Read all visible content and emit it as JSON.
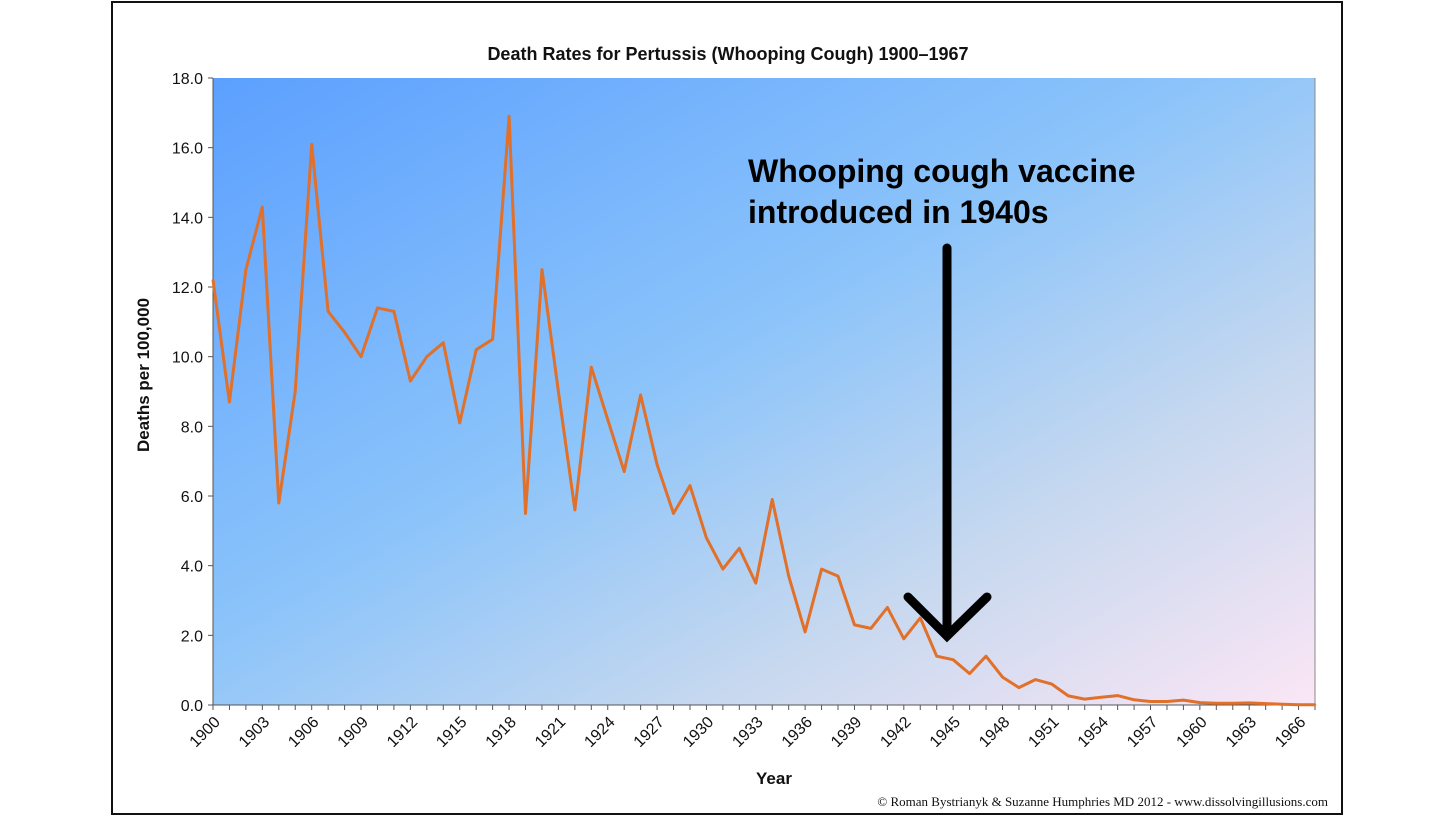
{
  "chart_data": {
    "type": "line",
    "title": "Death Rates for Pertussis (Whooping Cough) 1900–1967",
    "xlabel": "Year",
    "ylabel": "Deaths per 100,000",
    "xlim": [
      1900,
      1967
    ],
    "ylim": [
      0,
      18
    ],
    "y_ticks": [
      "0.0",
      "2.0",
      "4.0",
      "6.0",
      "8.0",
      "10.0",
      "12.0",
      "14.0",
      "16.0",
      "18.0"
    ],
    "x_ticks": [
      "1900",
      "1903",
      "1906",
      "1909",
      "1912",
      "1915",
      "1918",
      "1921",
      "1924",
      "1927",
      "1930",
      "1933",
      "1936",
      "1939",
      "1942",
      "1945",
      "1948",
      "1951",
      "1954",
      "1957",
      "1960",
      "1963",
      "1966"
    ],
    "grid": false,
    "background": "gradient blue to light pink",
    "line_color": "#e0702a",
    "x": [
      1900,
      1901,
      1902,
      1903,
      1904,
      1905,
      1906,
      1907,
      1908,
      1909,
      1910,
      1911,
      1912,
      1913,
      1914,
      1915,
      1916,
      1917,
      1918,
      1919,
      1920,
      1921,
      1922,
      1923,
      1924,
      1925,
      1926,
      1927,
      1928,
      1929,
      1930,
      1931,
      1932,
      1933,
      1934,
      1935,
      1936,
      1937,
      1938,
      1939,
      1940,
      1941,
      1942,
      1943,
      1944,
      1945,
      1946,
      1947,
      1948,
      1949,
      1950,
      1951,
      1952,
      1953,
      1954,
      1955,
      1956,
      1957,
      1958,
      1959,
      1960,
      1961,
      1962,
      1963,
      1964,
      1965,
      1966,
      1967
    ],
    "series": [
      {
        "values": [
          12.2,
          8.7,
          12.5,
          14.3,
          5.8,
          9.0,
          16.1,
          11.3,
          10.7,
          10.0,
          11.4,
          11.3,
          9.3,
          10.0,
          10.4,
          8.1,
          10.2,
          10.5,
          16.9,
          5.5,
          12.5,
          9.0,
          5.6,
          9.7,
          8.2,
          6.7,
          8.9,
          6.9,
          5.5,
          6.3,
          4.8,
          3.9,
          4.5,
          3.5,
          5.9,
          3.7,
          2.1,
          3.9,
          3.7,
          2.3,
          2.2,
          2.8,
          1.9,
          2.5,
          1.4,
          1.3,
          0.9,
          1.4,
          0.8,
          0.5,
          0.73,
          0.6,
          0.26,
          0.17,
          0.22,
          0.27,
          0.15,
          0.1,
          0.1,
          0.14,
          0.07,
          0.05,
          0.05,
          0.06,
          0.04,
          0.02,
          0.01,
          0.01
        ]
      }
    ],
    "annotation": {
      "line1": "Whooping cough vaccine",
      "line2": "introduced in 1940s",
      "arrow_year": 1945
    }
  },
  "credit": "© Roman Bystrianyk & Suzanne Humphries MD 2012 - www.dissolvingillusions.com"
}
